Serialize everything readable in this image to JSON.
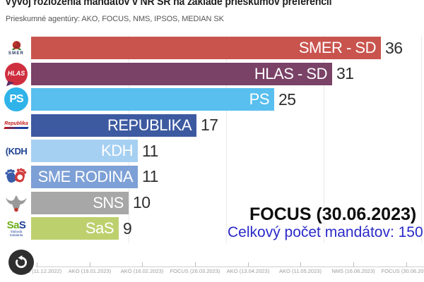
{
  "header": {
    "title": "Vývoj rozloženia mandátov v NR SR na základe prieskumov preferencií",
    "subtitle": "Prieskumné agentúry: AKO, FOCUS, NMS, IPSOS, MEDIAN SK"
  },
  "chart_data": {
    "type": "bar",
    "orientation": "horizontal",
    "title": "Vývoj rozloženia mandátov v NR SR na základe prieskumov preferencií",
    "subtitle": "Prieskumné agentúry: AKO, FOCUS, NMS, IPSOS, MEDIAN SK",
    "categories": [
      "SMER - SD",
      "HLAS - SD",
      "PS",
      "REPUBLIKA",
      "KDH",
      "SME RODINA",
      "SNS",
      "SaS"
    ],
    "values": [
      36,
      31,
      25,
      17,
      11,
      11,
      10,
      9
    ],
    "bar_colors": [
      "#c9544e",
      "#7a4267",
      "#58bfee",
      "#3d5aa1",
      "#a6d0f2",
      "#7da0d6",
      "#a7a7a7",
      "#bdd06e"
    ],
    "xlim": [
      0,
      40
    ],
    "gridlines": "vertical, every 10 mandates",
    "value_labels": "outside bar end, dark gray",
    "x_axis_ticks": [
      "FOCUS (11.12.2022)",
      "AKO (19.01.2023)",
      "AKO (16.02.2023)",
      "FOCUS (26.03.2023)",
      "AKO (13.04.2023)",
      "AKO (11.05.2023)",
      "NMS (16.06.2023)",
      "FOCUS (30.06.2023)"
    ],
    "current_frame_label": "FOCUS (30.06.2023)",
    "current_frame_total": "Celkový počet mandátov: 150"
  },
  "bars": [
    {
      "party": "SMER - SD",
      "seats": 36,
      "color": "#c9544e"
    },
    {
      "party": "HLAS - SD",
      "seats": 31,
      "color": "#7a4267"
    },
    {
      "party": "PS",
      "seats": 25,
      "color": "#58bfee"
    },
    {
      "party": "REPUBLIKA",
      "seats": 17,
      "color": "#3d5aa1"
    },
    {
      "party": "KDH",
      "seats": 11,
      "color": "#a6d0f2"
    },
    {
      "party": "SME RODINA",
      "seats": 11,
      "color": "#7da0d6"
    },
    {
      "party": "SNS",
      "seats": 10,
      "color": "#a7a7a7"
    },
    {
      "party": "SaS",
      "seats": 9,
      "color": "#bdd06e"
    }
  ],
  "overlay": {
    "frame_label": "FOCUS (30.06.2023)",
    "total_label": "Celkový počet mandátov: 150"
  },
  "axis": {
    "ticks": [
      "FOCUS (11.12.2022)",
      "AKO (19.01.2023)",
      "AKO (16.02.2023)",
      "FOCUS (26.03.2023)",
      "AKO (13.04.2023)",
      "AKO (11.05.2023)",
      "NMS (16.06.2023)",
      "FOCUS (30.06.2023)"
    ]
  },
  "logos": {
    "smer": {
      "text": "SMER"
    },
    "hlas": {
      "text": "HLAS"
    },
    "ps": {
      "text": "PS"
    },
    "republika": {
      "text": "Republika"
    },
    "kdh": {
      "text": "(KDH"
    },
    "sas": {
      "text_green": "Sa",
      "text_blue": "S",
      "subtext_line1": "Sloboda",
      "subtext_line2": "Solidarita"
    }
  },
  "controls": {
    "replay": "replay"
  }
}
